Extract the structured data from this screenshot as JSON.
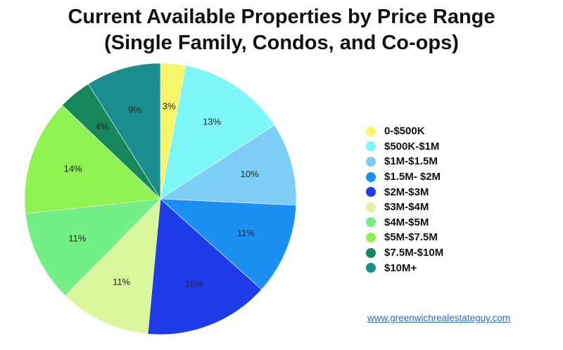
{
  "chart_data": {
    "type": "pie",
    "title_line1": "Current Available Properties by Price Range",
    "title_line2": "(Single Family, Condos, and Co-ops)",
    "slices": [
      {
        "label": "0-$500K",
        "value": 3,
        "display": "3%",
        "color": "#f7f56a"
      },
      {
        "label": "$500K-$1M",
        "value": 13,
        "display": "13%",
        "color": "#7df6f7"
      },
      {
        "label": "$1M-$1.5M",
        "value": 10,
        "display": "10%",
        "color": "#7dcef7"
      },
      {
        "label": "$1.5M- $2M",
        "value": 11,
        "display": "11%",
        "color": "#1b8ff2"
      },
      {
        "label": "$2M-$3M",
        "value": 15,
        "display": "15%",
        "color": "#1f3cea"
      },
      {
        "label": "$3M-$4M",
        "value": 11,
        "display": "11%",
        "color": "#d9f79a"
      },
      {
        "label": "$4M-$5M",
        "value": 11,
        "display": "11%",
        "color": "#72f086"
      },
      {
        "label": "$5M-$7.5M",
        "value": 14,
        "display": "14%",
        "color": "#8ef250"
      },
      {
        "label": "$7.5M-$10M",
        "value": 4,
        "display": "4%",
        "color": "#16875a"
      },
      {
        "label": "$10M+",
        "value": 9,
        "display": "9%",
        "color": "#1a8d8f"
      }
    ],
    "legend_position": "right"
  },
  "footer": {
    "link_text": "www.greenwichrealestateguy.com"
  }
}
